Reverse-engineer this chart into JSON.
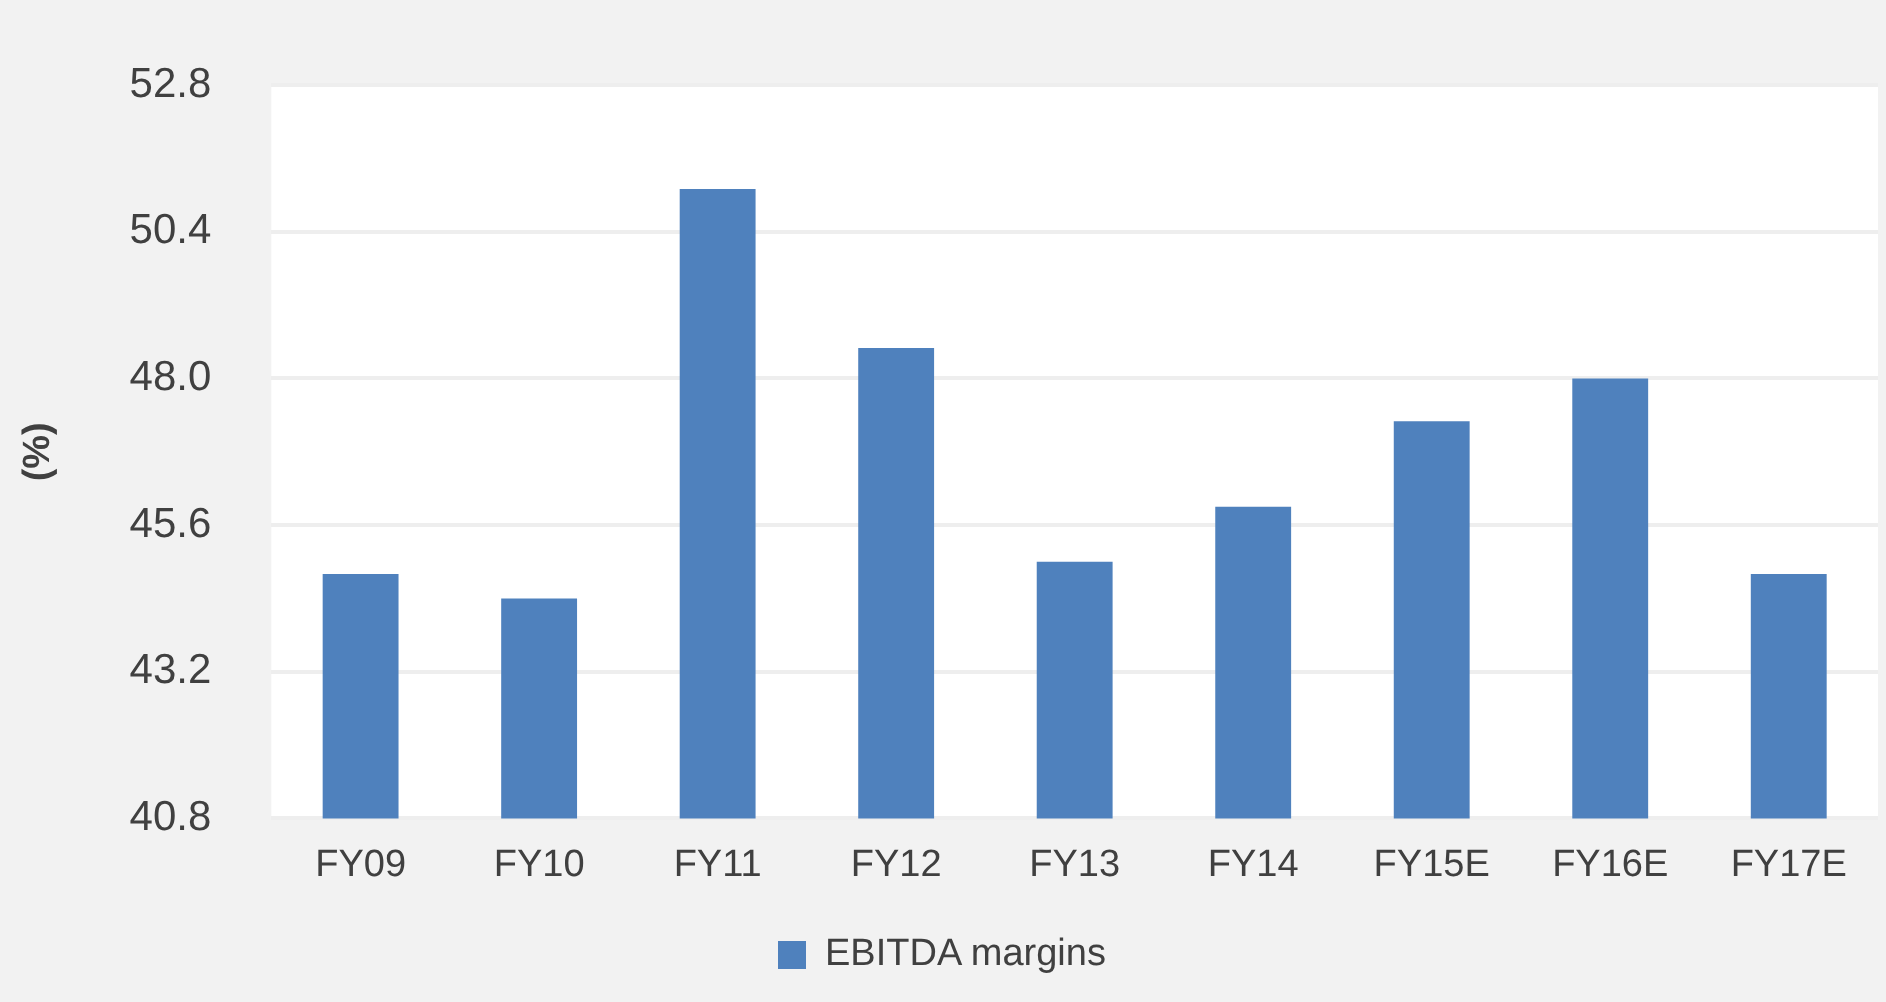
{
  "chart_data": {
    "type": "bar",
    "ylabel": "(%)",
    "categories": [
      "FY09",
      "FY10",
      "FY11",
      "FY12",
      "FY13",
      "FY14",
      "FY15E",
      "FY16E",
      "FY17E"
    ],
    "series": [
      {
        "name": "EBITDA margins",
        "color": "#4f81bd",
        "values": [
          44.8,
          44.4,
          51.1,
          48.5,
          45.0,
          45.9,
          47.3,
          48.0,
          44.8
        ]
      }
    ],
    "ylim": [
      40.8,
      52.8
    ],
    "yticks": [
      {
        "value": 40.8,
        "label": "40.8"
      },
      {
        "value": 43.2,
        "label": "43.2"
      },
      {
        "value": 45.6,
        "label": "45.6"
      },
      {
        "value": 48.0,
        "label": "48.0"
      },
      {
        "value": 50.4,
        "label": "50.4"
      },
      {
        "value": 52.8,
        "label": "52.8"
      }
    ],
    "grid": "y",
    "legend": "bottom"
  }
}
